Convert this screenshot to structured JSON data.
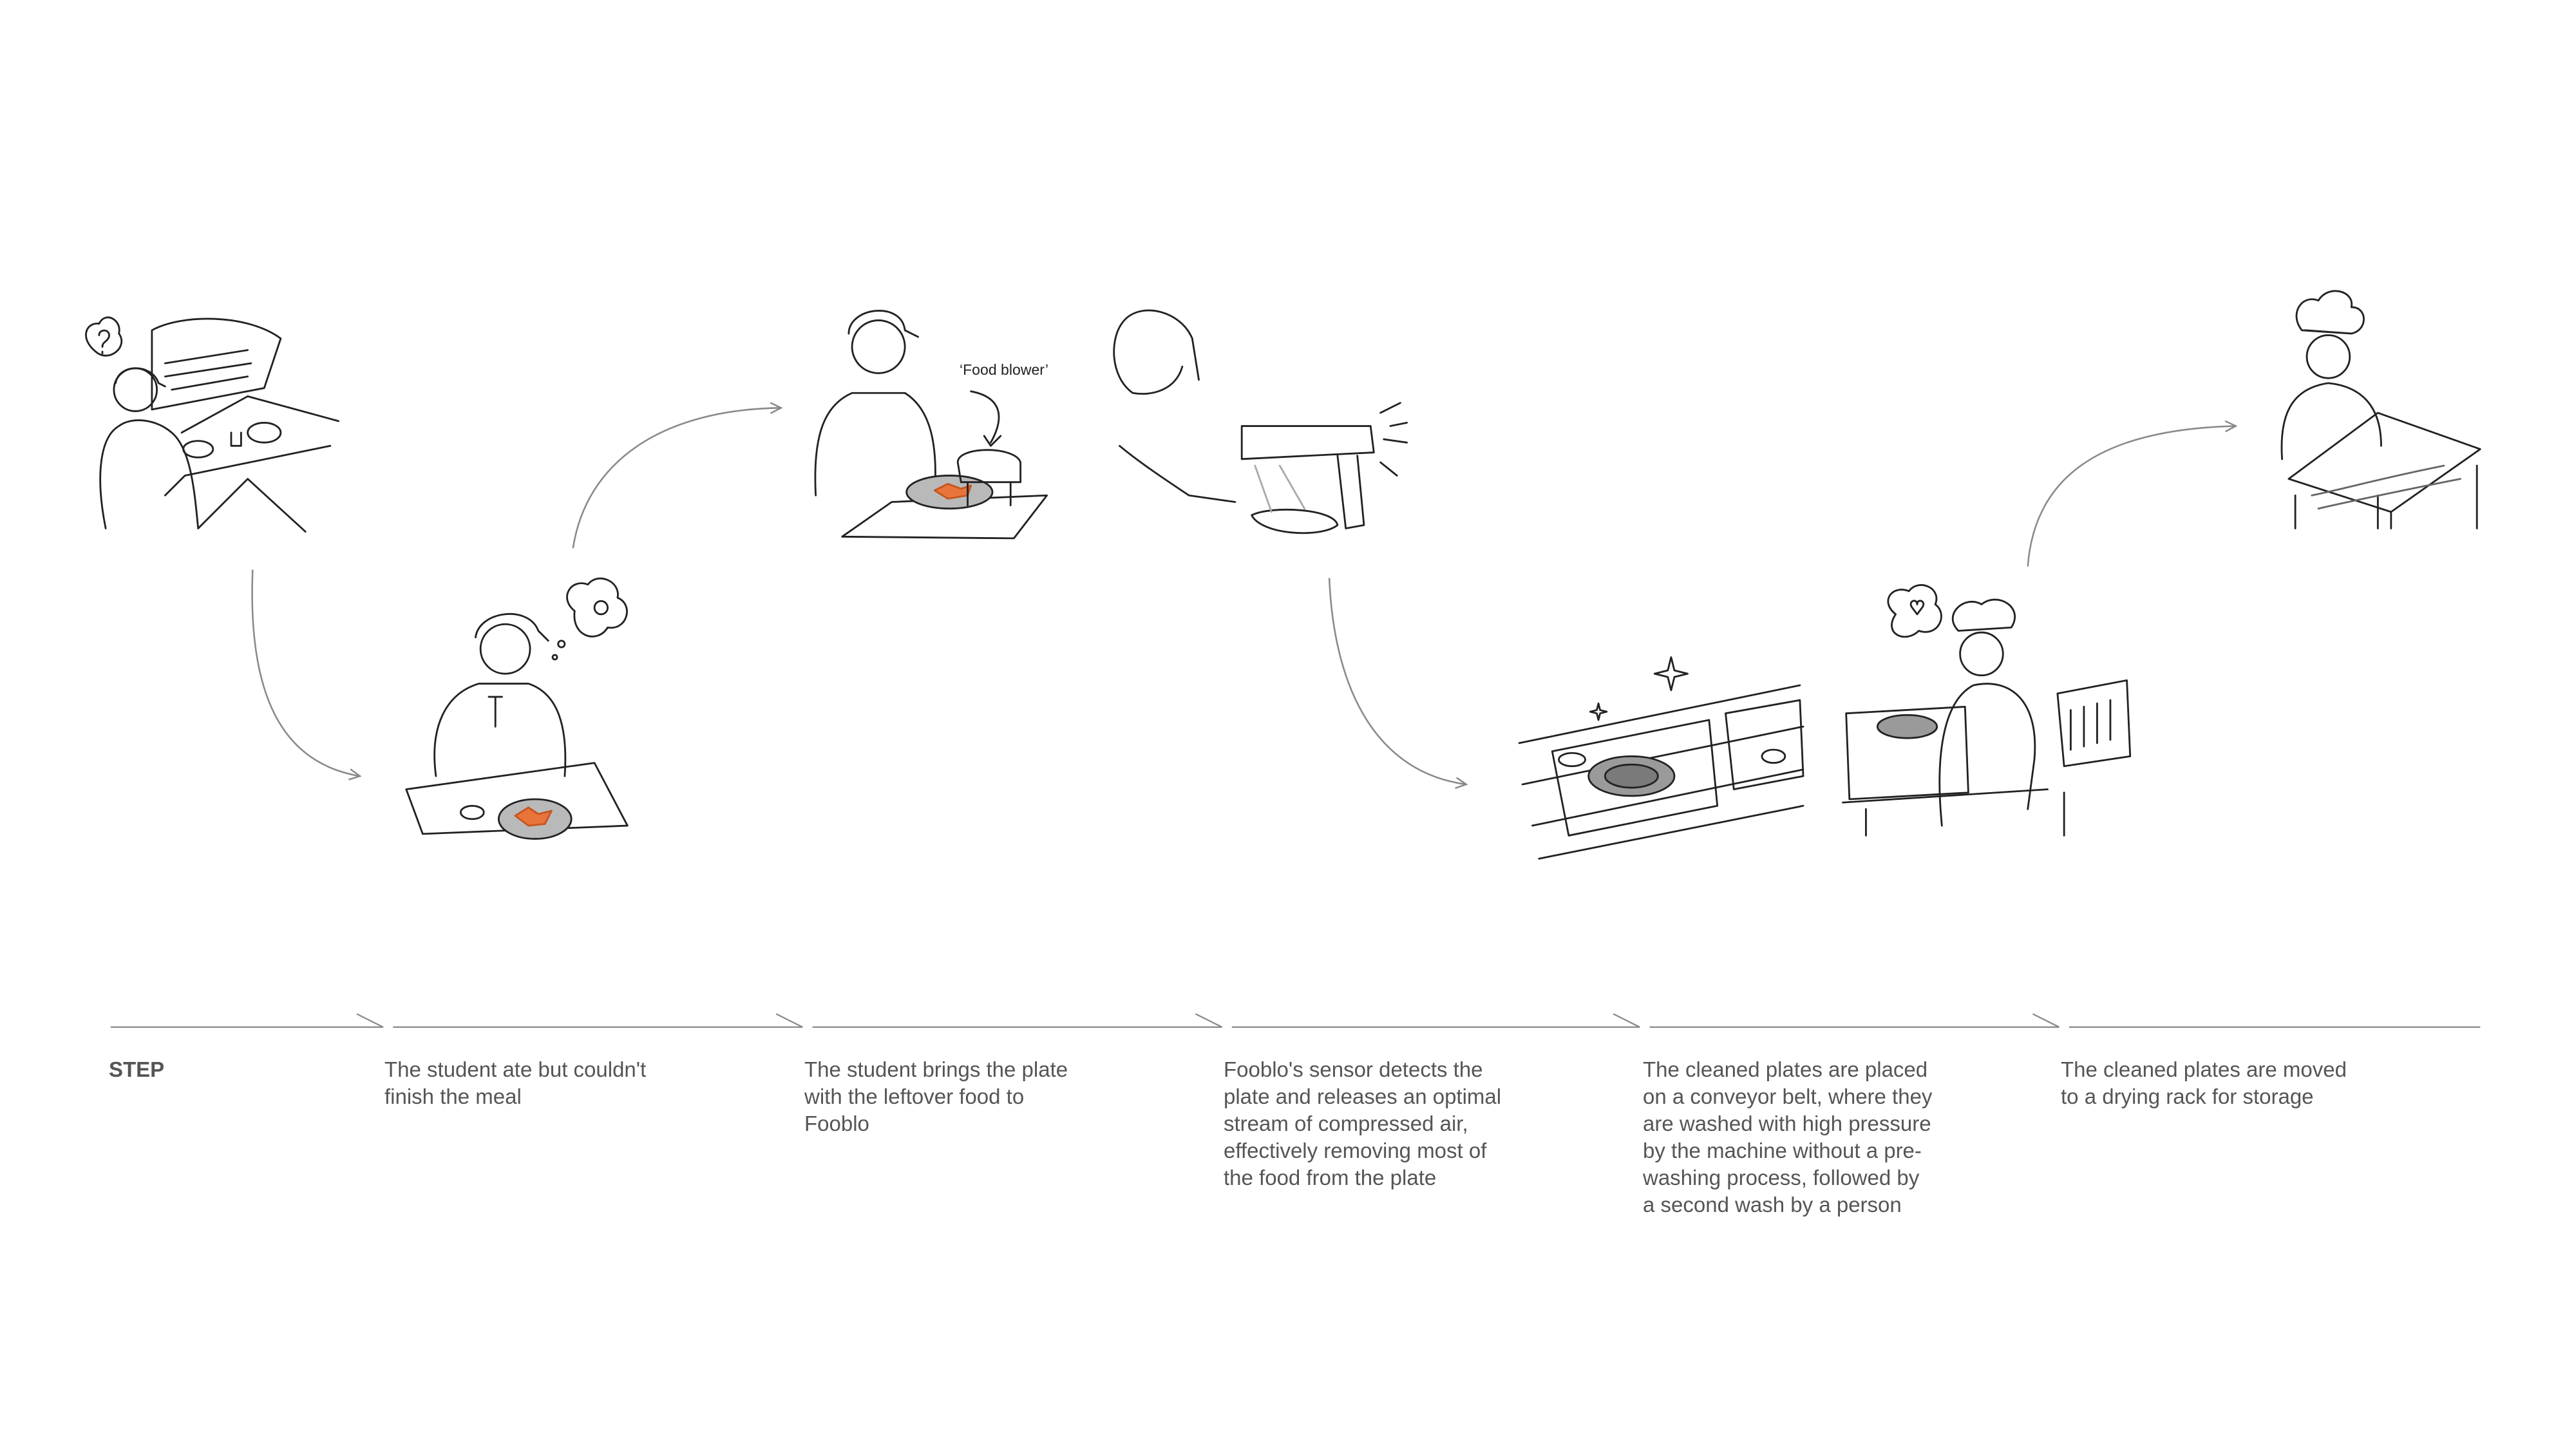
{
  "header": "STEP",
  "steps": [
    {
      "text": "The student ate but couldn't finish the meal"
    },
    {
      "text": "The student brings the plate with the leftover food to Fooblo"
    },
    {
      "text": "Fooblo's sensor detects the plate and releases an optimal stream of compressed air, effectively removing most of the food from the plate"
    },
    {
      "text": "The cleaned plates are placed on a conveyor belt, where they are washed with high pressure by the machine without a pre-washing process, followed by a second wash by a person"
    },
    {
      "text": "The cleaned plates are moved to a drying rack for storage"
    }
  ],
  "illustration": {
    "annotation": "‘Food blower’"
  }
}
